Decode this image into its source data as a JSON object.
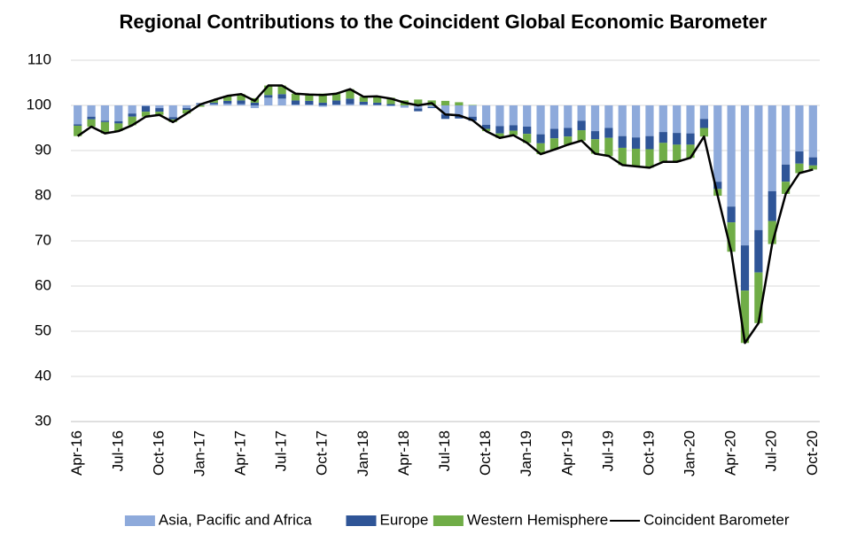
{
  "chart_data": {
    "type": "bar",
    "title": "Regional Contributions to the Coincident Global Economic Barometer",
    "categories": [
      "Apr-16",
      null,
      null,
      "Jul-16",
      null,
      null,
      "Oct-16",
      null,
      null,
      "Jan-17",
      null,
      null,
      "Apr-17",
      null,
      null,
      "Jul-17",
      null,
      null,
      "Oct-17",
      null,
      null,
      "Jan-18",
      null,
      null,
      "Apr-18",
      null,
      null,
      "Jul-18",
      null,
      null,
      "Oct-18",
      null,
      null,
      "Jan-19",
      null,
      null,
      "Apr-19",
      null,
      null,
      "Jul-19",
      null,
      null,
      "Oct-19",
      null,
      null,
      "Jan-20",
      null,
      null,
      "Apr-20",
      null,
      null,
      "Jul-20",
      null,
      null,
      "Oct-20"
    ],
    "baseline": 100,
    "series": [
      {
        "name": "Asia, Pacific and Africa",
        "type": "bar",
        "color": "#8eaadb",
        "values": [
          -4.2,
          -2.5,
          -3.4,
          -3.5,
          -1.8,
          -0.2,
          -0.6,
          -2.6,
          -0.6,
          0.3,
          0.3,
          0.4,
          0.3,
          -0.6,
          1.7,
          1.5,
          0.2,
          0.2,
          -0.3,
          0.2,
          0.3,
          0.2,
          0.1,
          -0.2,
          -0.5,
          -0.7,
          -0.4,
          -2.0,
          -2.3,
          -2.5,
          -4.3,
          -4.6,
          -4.4,
          -4.7,
          -6.4,
          -5.2,
          -5.0,
          -3.4,
          -5.7,
          -5.0,
          -6.8,
          -7.1,
          -6.8,
          -5.9,
          -6.1,
          -6.2,
          -3.0,
          -16.9,
          -22.4,
          -31.0,
          -27.6,
          -19.0,
          -13.1,
          -10.2,
          -11.5
        ]
      },
      {
        "name": "Europe",
        "type": "bar",
        "color": "#2f5597",
        "values": [
          -0.3,
          -0.6,
          -0.3,
          -0.5,
          -0.7,
          -1.2,
          -0.8,
          -0.5,
          -0.4,
          0.2,
          0.3,
          0.6,
          0.8,
          0.6,
          0.6,
          1.0,
          0.9,
          0.8,
          0.6,
          0.9,
          1.2,
          0.6,
          0.5,
          0.3,
          0.0,
          -0.6,
          -0.2,
          -1.0,
          -0.6,
          -0.9,
          -0.9,
          -1.6,
          -1.2,
          -1.6,
          -2.0,
          -2.1,
          -1.9,
          -2.1,
          -1.8,
          -2.2,
          -2.6,
          -2.5,
          -2.9,
          -2.4,
          -2.6,
          -2.5,
          -2.0,
          -1.6,
          -3.5,
          -10.0,
          -9.4,
          -6.6,
          -3.8,
          -2.7,
          -1.8
        ]
      },
      {
        "name": "Western Hemisphere",
        "type": "bar",
        "color": "#70ad47",
        "values": [
          -2.3,
          -1.6,
          -2.5,
          -1.7,
          -1.9,
          -1.1,
          -0.7,
          -0.6,
          -0.8,
          -0.3,
          0.6,
          1.1,
          1.4,
          1.0,
          2.1,
          1.9,
          1.5,
          1.4,
          2.0,
          1.5,
          2.1,
          1.1,
          1.4,
          1.4,
          1.1,
          1.3,
          1.1,
          1.0,
          0.7,
          0.1,
          -0.5,
          -1.0,
          -1.0,
          -2.0,
          -2.4,
          -2.5,
          -1.8,
          -2.3,
          -3.2,
          -4.0,
          -3.8,
          -3.9,
          -4.1,
          -4.2,
          -3.8,
          -2.9,
          -1.9,
          -1.5,
          -6.5,
          -11.6,
          -11.2,
          -5.1,
          -2.7,
          -2.1,
          -0.9
        ]
      },
      {
        "name": "Coincident Barometer",
        "type": "line",
        "color": "#000000",
        "values": [
          93.2,
          95.3,
          93.8,
          94.3,
          95.6,
          97.5,
          97.9,
          96.3,
          98.2,
          100.2,
          101.2,
          102.1,
          102.5,
          101.0,
          104.4,
          104.4,
          102.6,
          102.4,
          102.3,
          102.6,
          103.6,
          101.9,
          102.0,
          101.5,
          100.6,
          100.0,
          100.5,
          98.0,
          97.8,
          96.7,
          94.3,
          92.8,
          93.4,
          91.7,
          89.2,
          90.2,
          91.3,
          92.2,
          89.3,
          88.8,
          86.8,
          86.5,
          86.2,
          87.5,
          87.5,
          88.4,
          93.1,
          80.0,
          67.6,
          47.4,
          51.8,
          69.3,
          80.4,
          85.0,
          85.8
        ]
      }
    ],
    "ylim": [
      30,
      110
    ],
    "yticks": [
      30,
      40,
      50,
      60,
      70,
      80,
      90,
      100,
      110
    ],
    "grid": true,
    "legend": "bottom"
  }
}
